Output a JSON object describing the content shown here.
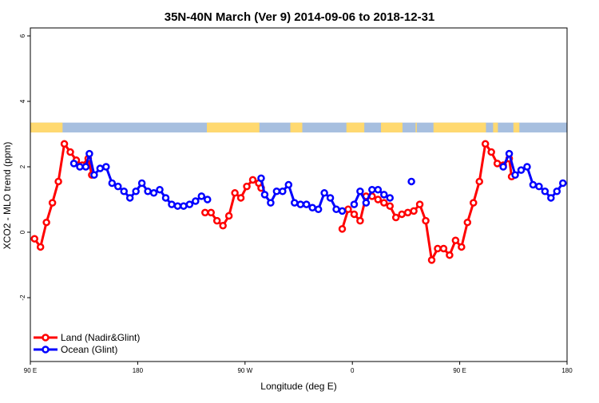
{
  "chart_data": {
    "type": "line",
    "title": "35N-40N March (Ver 9)   2014-09-06 to 2018-12-31",
    "xlabel": "Longitude (deg E)",
    "ylabel": "XCO2 - MLO trend (ppm)",
    "xlim": [
      90,
      450
    ],
    "ylim": [
      -4,
      6.3
    ],
    "x_ticks": [
      {
        "value": 90,
        "label": "90 E"
      },
      {
        "value": 180,
        "label": "180"
      },
      {
        "value": 270,
        "label": "90 W"
      },
      {
        "value": 360,
        "label": "0"
      },
      {
        "value": 450,
        "label": "90 E"
      },
      {
        "value": 540,
        "label": "180"
      }
    ],
    "y_ticks": [
      {
        "value": -2,
        "label": "-2"
      },
      {
        "value": 0,
        "label": "0"
      },
      {
        "value": 2,
        "label": "2"
      },
      {
        "value": 4,
        "label": "4"
      },
      {
        "value": 6,
        "label": "6"
      }
    ],
    "x_display_range": [
      90,
      540
    ],
    "legend_position": "bottom-left",
    "surface_band": {
      "y_range": [
        3.05,
        3.35
      ],
      "land_color": "#ffd970",
      "ocean_color": "#a7bfdf",
      "land_segments": [
        [
          90,
          117
        ],
        [
          238,
          282
        ],
        [
          308,
          318
        ],
        [
          355,
          370
        ],
        [
          384,
          402
        ],
        [
          413,
          414
        ],
        [
          428,
          472
        ],
        [
          478,
          482
        ],
        [
          495,
          500
        ]
      ]
    },
    "series": [
      {
        "name": "Land (Nadir&Glint)",
        "color": "#ff0000",
        "points": [
          [
            93.5,
            -0.2
          ],
          [
            98.5,
            -0.45
          ],
          [
            103.5,
            0.3
          ],
          [
            108.5,
            0.9
          ],
          [
            113.5,
            1.55
          ],
          [
            118.5,
            2.7
          ],
          [
            123.5,
            2.45
          ],
          [
            128.5,
            2.2
          ],
          [
            133.5,
            2.05
          ],
          [
            138.5,
            2.25
          ],
          [
            141.5,
            1.75
          ],
          null,
          [
            236.5,
            0.6
          ],
          [
            241.5,
            0.6
          ],
          [
            246.5,
            0.35
          ],
          [
            251.5,
            0.2
          ],
          [
            256.5,
            0.5
          ],
          [
            261.5,
            1.2
          ],
          [
            266.5,
            1.05
          ],
          [
            271.5,
            1.4
          ],
          [
            276.5,
            1.6
          ],
          [
            281.5,
            1.5
          ],
          [
            283.5,
            1.35
          ],
          null,
          [
            351.5,
            0.1
          ],
          [
            356.5,
            0.7
          ],
          [
            361.5,
            0.55
          ],
          [
            366.5,
            0.35
          ],
          [
            371.5,
            1.1
          ],
          [
            376.5,
            1.1
          ],
          [
            381.5,
            1.0
          ],
          [
            386.5,
            0.9
          ],
          [
            391.5,
            0.8
          ],
          [
            396.5,
            0.45
          ],
          [
            401.5,
            0.55
          ],
          [
            406.5,
            0.6
          ],
          [
            411.5,
            0.65
          ],
          [
            416.5,
            0.85
          ],
          [
            421.5,
            0.35
          ],
          [
            426.5,
            -0.85
          ],
          [
            431.5,
            -0.5
          ],
          [
            436.5,
            -0.5
          ],
          [
            441.5,
            -0.7
          ],
          [
            446.5,
            -0.25
          ],
          [
            451.5,
            -0.45
          ],
          [
            456.5,
            0.3
          ],
          [
            461.5,
            0.9
          ],
          [
            466.5,
            1.55
          ],
          [
            471.5,
            2.7
          ],
          [
            476.5,
            2.45
          ],
          [
            481.5,
            2.1
          ],
          [
            486.5,
            2.05
          ],
          [
            491.5,
            2.25
          ],
          [
            493.5,
            1.7
          ]
        ]
      },
      {
        "name": "Ocean (Glint)",
        "color": "#0000ff",
        "points": [
          [
            126.5,
            2.1
          ],
          [
            131.5,
            2.0
          ],
          [
            136.5,
            2.0
          ],
          [
            139.5,
            2.4
          ],
          [
            143.5,
            1.75
          ],
          [
            148.5,
            1.95
          ],
          [
            153.5,
            2.0
          ],
          [
            158.5,
            1.5
          ],
          [
            163.5,
            1.4
          ],
          [
            168.5,
            1.25
          ],
          [
            173.5,
            1.05
          ],
          [
            178.5,
            1.25
          ],
          [
            183.5,
            1.5
          ],
          [
            188.5,
            1.25
          ],
          [
            193.5,
            1.2
          ],
          [
            198.5,
            1.3
          ],
          [
            203.5,
            1.05
          ],
          [
            208.5,
            0.85
          ],
          [
            213.5,
            0.8
          ],
          [
            218.5,
            0.8
          ],
          [
            223.5,
            0.85
          ],
          [
            228.5,
            0.95
          ],
          [
            233.5,
            1.1
          ],
          [
            238.5,
            1.0
          ],
          null,
          [
            283.5,
            1.65
          ],
          [
            286.5,
            1.15
          ],
          [
            291.5,
            0.9
          ],
          [
            296.5,
            1.25
          ],
          [
            301.5,
            1.25
          ],
          [
            306.5,
            1.45
          ],
          [
            311.5,
            0.9
          ],
          [
            316.5,
            0.85
          ],
          [
            321.5,
            0.85
          ],
          [
            326.5,
            0.75
          ],
          [
            331.5,
            0.7
          ],
          [
            336.5,
            1.2
          ],
          [
            341.5,
            1.05
          ],
          [
            346.5,
            0.7
          ],
          [
            351.5,
            0.65
          ],
          null,
          [
            361.5,
            0.85
          ],
          [
            366.5,
            1.25
          ],
          [
            371.5,
            0.9
          ],
          [
            376.5,
            1.3
          ],
          [
            381.5,
            1.3
          ],
          [
            386.5,
            1.15
          ],
          [
            391.5,
            1.05
          ],
          null,
          [
            409.5,
            1.55
          ],
          null,
          [
            486.5,
            2.0
          ],
          [
            491.5,
            2.4
          ],
          [
            496.5,
            1.75
          ],
          [
            501.5,
            1.9
          ],
          [
            506.5,
            2.0
          ],
          [
            511.5,
            1.45
          ],
          [
            516.5,
            1.4
          ],
          [
            521.5,
            1.25
          ],
          [
            526.5,
            1.05
          ],
          [
            531.5,
            1.25
          ],
          [
            536.5,
            1.5
          ]
        ]
      }
    ]
  }
}
